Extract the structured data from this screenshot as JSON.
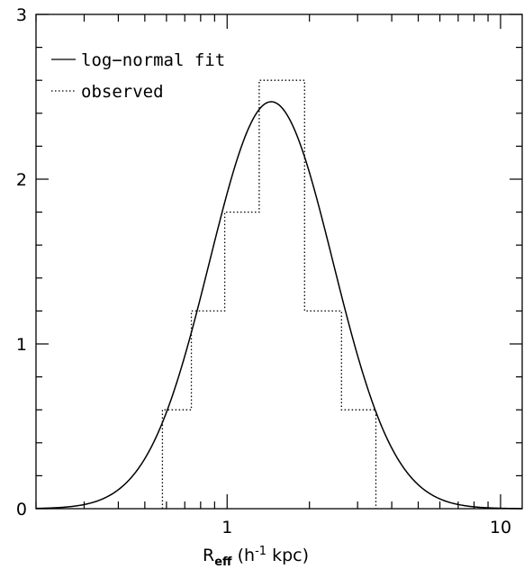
{
  "chart_data": {
    "type": "line",
    "xscale": "log",
    "xlim": [
      0.2,
      12
    ],
    "ylim": [
      0,
      3
    ],
    "xlabel": {
      "main": "R",
      "sub": "eff",
      "rest1": " (h",
      "sup": "-1",
      "rest2": "  kpc)"
    },
    "ylabel": "",
    "x_major_ticks": [
      1,
      10
    ],
    "x_tick_labels": [
      "1",
      "10"
    ],
    "y_major_ticks": [
      0,
      1,
      2,
      3
    ],
    "y_tick_labels": [
      "0",
      "1",
      "2",
      "3"
    ],
    "legend_position": "top-left",
    "series": [
      {
        "name": "log−normal fit",
        "style": "solid",
        "kind": "log-normal curve",
        "peak_x": 1.45,
        "peak_y": 2.47,
        "sigma_ln": 0.52
      },
      {
        "name": "observed",
        "style": "dotted",
        "kind": "histogram",
        "bin_edges": [
          0.58,
          0.74,
          0.98,
          1.31,
          1.92,
          2.62,
          3.5
        ],
        "values": [
          0.6,
          1.2,
          1.8,
          2.6,
          1.2,
          0.6
        ]
      }
    ]
  }
}
